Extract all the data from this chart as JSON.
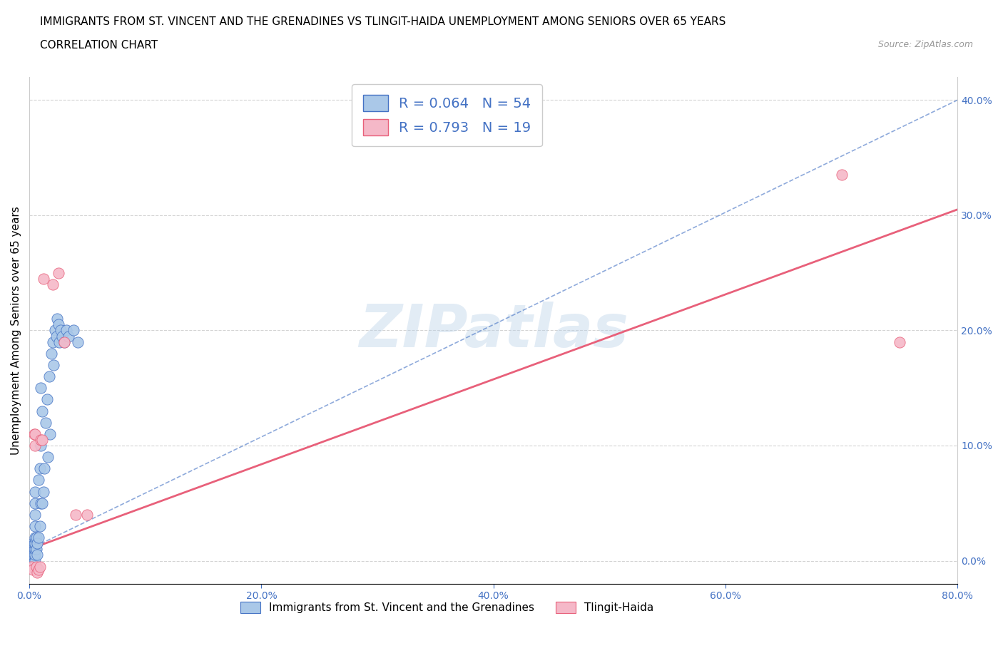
{
  "title_line1": "IMMIGRANTS FROM ST. VINCENT AND THE GRENADINES VS TLINGIT-HAIDA UNEMPLOYMENT AMONG SENIORS OVER 65 YEARS",
  "title_line2": "CORRELATION CHART",
  "source_text": "Source: ZipAtlas.com",
  "ylabel": "Unemployment Among Seniors over 65 years",
  "xlim": [
    0.0,
    0.8
  ],
  "ylim": [
    -0.02,
    0.42
  ],
  "xticks": [
    0.0,
    0.2,
    0.4,
    0.6,
    0.8
  ],
  "yticks": [
    0.0,
    0.1,
    0.2,
    0.3,
    0.4
  ],
  "xtick_labels": [
    "0.0%",
    "20.0%",
    "40.0%",
    "60.0%",
    "80.0%"
  ],
  "ytick_labels_right": [
    "0.0%",
    "10.0%",
    "20.0%",
    "30.0%",
    "40.0%"
  ],
  "blue_scatter_x": [
    0.002,
    0.002,
    0.002,
    0.003,
    0.003,
    0.003,
    0.004,
    0.004,
    0.004,
    0.004,
    0.005,
    0.005,
    0.005,
    0.005,
    0.005,
    0.005,
    0.005,
    0.005,
    0.005,
    0.006,
    0.006,
    0.007,
    0.007,
    0.008,
    0.008,
    0.009,
    0.009,
    0.01,
    0.01,
    0.01,
    0.011,
    0.011,
    0.012,
    0.013,
    0.014,
    0.015,
    0.016,
    0.017,
    0.018,
    0.019,
    0.02,
    0.021,
    0.022,
    0.023,
    0.024,
    0.025,
    0.026,
    0.027,
    0.028,
    0.03,
    0.032,
    0.034,
    0.038,
    0.042
  ],
  "blue_scatter_y": [
    0.0,
    0.005,
    0.01,
    0.0,
    0.005,
    0.015,
    0.0,
    0.005,
    0.01,
    0.015,
    0.0,
    0.005,
    0.01,
    0.015,
    0.02,
    0.03,
    0.04,
    0.05,
    0.06,
    0.01,
    0.02,
    0.005,
    0.015,
    0.02,
    0.07,
    0.03,
    0.08,
    0.05,
    0.1,
    0.15,
    0.05,
    0.13,
    0.06,
    0.08,
    0.12,
    0.14,
    0.09,
    0.16,
    0.11,
    0.18,
    0.19,
    0.17,
    0.2,
    0.195,
    0.21,
    0.205,
    0.19,
    0.2,
    0.195,
    0.19,
    0.2,
    0.195,
    0.2,
    0.19
  ],
  "pink_scatter_x": [
    0.002,
    0.003,
    0.004,
    0.005,
    0.005,
    0.006,
    0.007,
    0.008,
    0.009,
    0.01,
    0.011,
    0.012,
    0.02,
    0.025,
    0.03,
    0.04,
    0.05,
    0.7,
    0.75
  ],
  "pink_scatter_y": [
    -0.005,
    -0.008,
    0.11,
    0.1,
    0.11,
    -0.005,
    -0.01,
    -0.008,
    -0.005,
    0.105,
    0.105,
    0.245,
    0.24,
    0.25,
    0.19,
    0.04,
    0.04,
    0.335,
    0.19
  ],
  "blue_line_x": [
    0.0,
    0.8
  ],
  "blue_line_y": [
    0.01,
    0.4
  ],
  "pink_line_x": [
    0.0,
    0.8
  ],
  "pink_line_y": [
    0.01,
    0.305
  ],
  "blue_color": "#aac8e8",
  "pink_color": "#f5b8c8",
  "blue_line_color": "#4472c4",
  "pink_line_color": "#e8607a",
  "legend_r_blue": "R = 0.064",
  "legend_n_blue": "N = 54",
  "legend_r_pink": "R = 0.793",
  "legend_n_pink": "N = 19",
  "legend1_label": "Immigrants from St. Vincent and the Grenadines",
  "legend2_label": "Tlingit-Haida",
  "watermark": "ZIPatlas",
  "background_color": "#ffffff",
  "grid_color": "#d0d0d0",
  "title_fontsize": 11,
  "axis_label_fontsize": 11,
  "tick_fontsize": 10
}
